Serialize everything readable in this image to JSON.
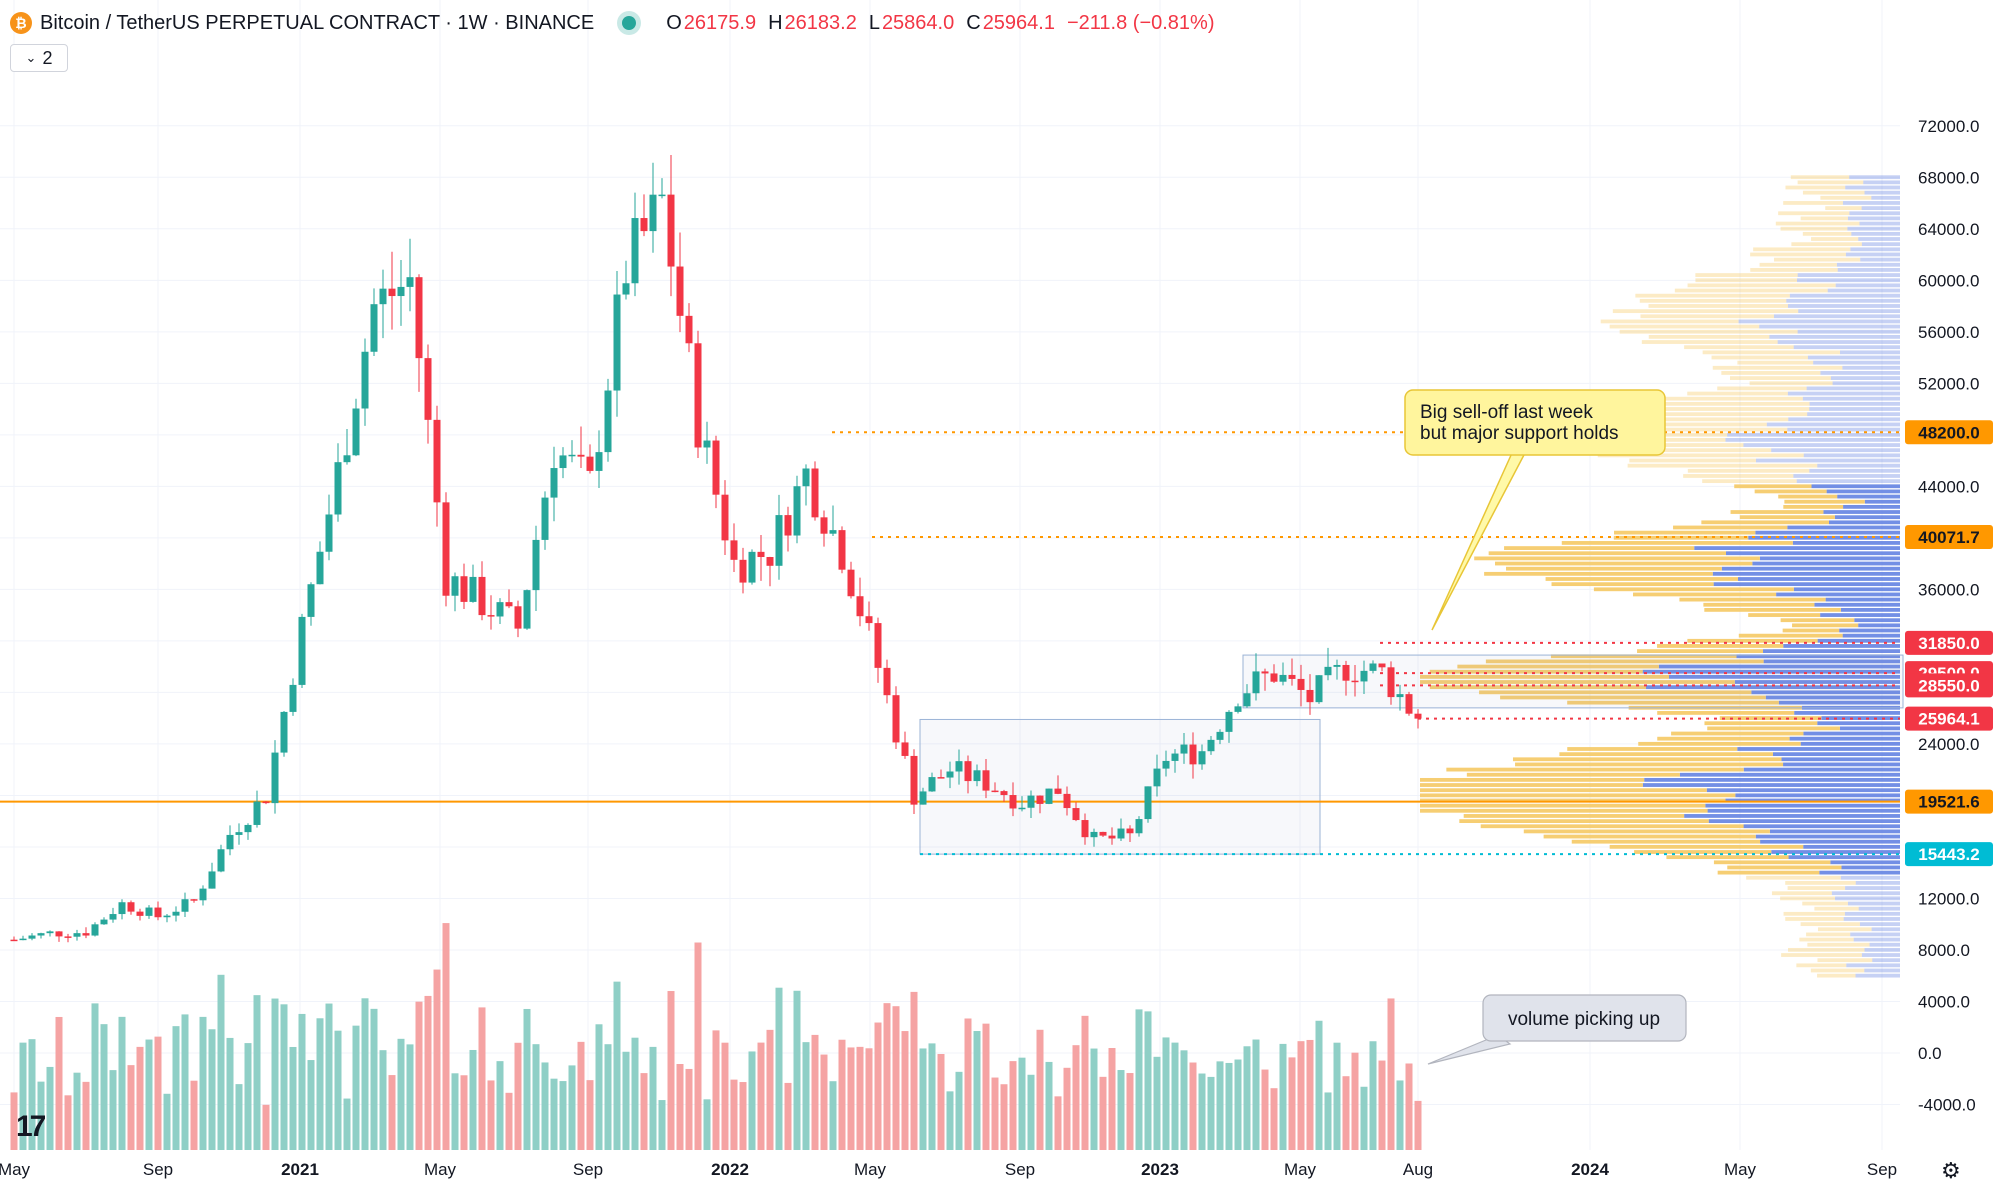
{
  "header": {
    "logo_glyph": "₿",
    "symbol": "Bitcoin / TetherUS PERPETUAL CONTRACT · 1W · BINANCE",
    "ohlc": [
      {
        "k": "O",
        "v": "26175.9"
      },
      {
        "k": "H",
        "v": "26183.2"
      },
      {
        "k": "L",
        "v": "25864.0"
      },
      {
        "k": "C",
        "v": "25964.1"
      }
    ],
    "change": "−211.8 (−0.81%)",
    "indicator_count": "2"
  },
  "colors": {
    "up": "#26a69a",
    "down": "#f23645",
    "vol_up": "#8fcfc6",
    "vol_down": "#f5a3a3",
    "level": "#ff9800",
    "cyan": "#00bcd4",
    "vp_blue": "#5b7be0",
    "vp_gold": "#f5c55a"
  },
  "chart_data": {
    "type": "candlestick",
    "interval": "1W",
    "price_axis": {
      "ticks": [
        "72000.0",
        "68000.0",
        "64000.0",
        "60000.0",
        "56000.0",
        "52000.0",
        "48000.0",
        "44000.0",
        "40000.0",
        "36000.0",
        "32000.0",
        "28000.0",
        "24000.0",
        "20000.0",
        "16000.0",
        "12000.0",
        "8000.0",
        "4000.0",
        "0.0",
        "-4000.0"
      ],
      "visible_labels": [
        "72000.0",
        "68000.0",
        "64000.0",
        "60000.0",
        "56000.0",
        "52000.0",
        "44000.0",
        "36000.0",
        "24000.0",
        "12000.0",
        "8000.0",
        "4000.0",
        "0.0",
        "-4000.0"
      ]
    },
    "time_axis": [
      {
        "label": "May",
        "bold": false
      },
      {
        "label": "Sep",
        "bold": false
      },
      {
        "label": "2021",
        "bold": true
      },
      {
        "label": "May",
        "bold": false
      },
      {
        "label": "Sep",
        "bold": false
      },
      {
        "label": "2022",
        "bold": true
      },
      {
        "label": "May",
        "bold": false
      },
      {
        "label": "Sep",
        "bold": false
      },
      {
        "label": "2023",
        "bold": true
      },
      {
        "label": "May",
        "bold": false
      },
      {
        "label": "Aug",
        "bold": false
      },
      {
        "label": "2024",
        "bold": true
      },
      {
        "label": "May",
        "bold": false
      },
      {
        "label": "Sep",
        "bold": false
      }
    ],
    "price_path": [
      [
        "2020-05",
        8800
      ],
      [
        "2020-06",
        9300
      ],
      [
        "2020-07",
        9400
      ],
      [
        "2020-08",
        11600
      ],
      [
        "2020-09",
        10600
      ],
      [
        "2020-10",
        11800
      ],
      [
        "2020-11",
        17000
      ],
      [
        "2020-12",
        20000
      ],
      [
        "2021-01",
        33000
      ],
      [
        "2021-02",
        45000
      ],
      [
        "2021-03",
        58000
      ],
      [
        "2021-04",
        60000
      ],
      [
        "2021-05",
        37000
      ],
      [
        "2021-06",
        35000
      ],
      [
        "2021-07",
        33000
      ],
      [
        "2021-08",
        47000
      ],
      [
        "2021-09",
        44000
      ],
      [
        "2021-10",
        61000
      ],
      [
        "2021-11",
        66000
      ],
      [
        "2021-12",
        49000
      ],
      [
        "2022-01",
        38000
      ],
      [
        "2022-02",
        39000
      ],
      [
        "2022-03",
        45000
      ],
      [
        "2022-04",
        39000
      ],
      [
        "2022-05",
        30000
      ],
      [
        "2022-06",
        20000
      ],
      [
        "2022-07",
        22000
      ],
      [
        "2022-08",
        21000
      ],
      [
        "2022-09",
        19500
      ],
      [
        "2022-10",
        20500
      ],
      [
        "2022-11",
        16500
      ],
      [
        "2022-12",
        16800
      ],
      [
        "2023-01",
        23000
      ],
      [
        "2023-02",
        23500
      ],
      [
        "2023-03",
        28000
      ],
      [
        "2023-04",
        29500
      ],
      [
        "2023-05",
        27500
      ],
      [
        "2023-06",
        30000
      ],
      [
        "2023-07",
        29500
      ],
      [
        "2023-08",
        25964.1
      ]
    ],
    "levels": [
      {
        "price": 48200.0,
        "label": "48200.0",
        "color": "#ff9800",
        "style": "dotted"
      },
      {
        "price": 40071.7,
        "label": "40071.7",
        "color": "#ff9800",
        "style": "dotted"
      },
      {
        "price": 31850.0,
        "label": "31850.0",
        "color": "#f23645",
        "style": "dotted"
      },
      {
        "price": 29500.0,
        "label": "29500.0",
        "color": "#f23645",
        "style": "dotted"
      },
      {
        "price": 28550.0,
        "label": "28550.0",
        "color": "#f23645",
        "style": "dotted"
      },
      {
        "price": 25964.1,
        "label": "25964.1",
        "color": "#f23645",
        "style": "last"
      },
      {
        "price": 19521.6,
        "label": "19521.6",
        "color": "#ff9800",
        "style": "solid"
      },
      {
        "price": 15443.2,
        "label": "15443.2",
        "color": "#00bcd4",
        "style": "dotted"
      }
    ],
    "last_price": 25964.1,
    "volume_profile": true
  },
  "annotations": [
    {
      "text": "Big sell-off last week\nbut major support holds",
      "style": "yellow"
    },
    {
      "text": "volume picking up",
      "style": "grey"
    }
  ],
  "footer_logo": "17"
}
